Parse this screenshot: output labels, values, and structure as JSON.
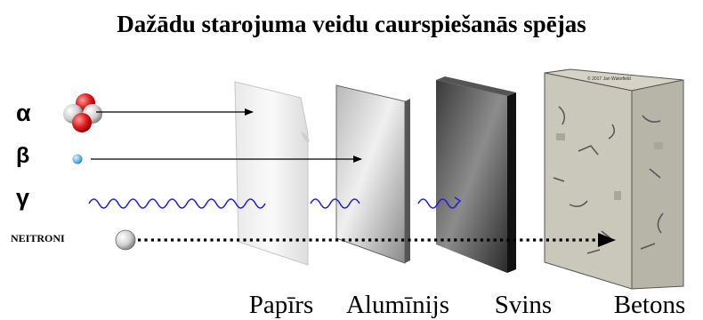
{
  "title": "Dažādu starojuma veidu caurspiešanās spējas",
  "radiation": {
    "alpha": "α",
    "beta": "β",
    "gamma": "γ",
    "neutrons": "NEITRONI"
  },
  "materials": {
    "paper": "Papīrs",
    "aluminium": "Alumīnijs",
    "lead": "Svins",
    "concrete": "Betons"
  },
  "copyright": "© 2017 Jan Wakefield"
}
